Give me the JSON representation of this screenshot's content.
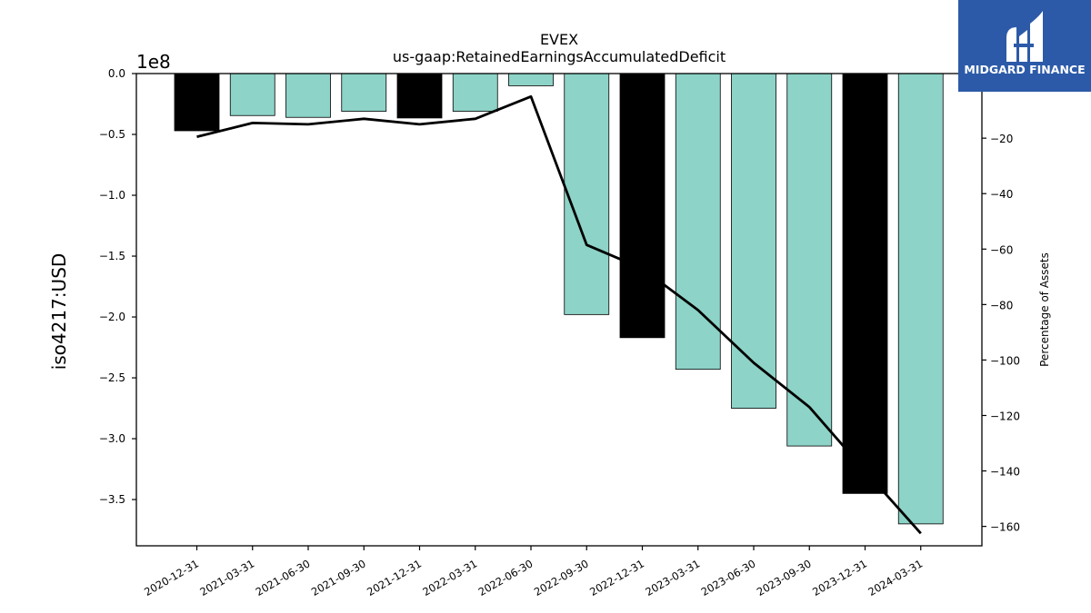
{
  "chart_data": {
    "type": "bar",
    "title": "EVEX",
    "subtitle": "us-gaap:RetainedEarningsAccumulatedDeficit",
    "ylabel": "iso4217:USD",
    "y2label": "Percentage of Assets",
    "y_offset_label": "1e8",
    "categories": [
      "2020-12-31",
      "2021-03-31",
      "2021-06-30",
      "2021-09-30",
      "2021-12-31",
      "2022-03-31",
      "2022-06-30",
      "2022-09-30",
      "2022-12-31",
      "2023-03-31",
      "2023-06-30",
      "2023-09-30",
      "2023-12-31",
      "2024-03-31"
    ],
    "series": [
      {
        "type": "bar",
        "values": [
          -0.47,
          -0.345,
          -0.36,
          -0.31,
          -0.365,
          -0.31,
          -0.1,
          -1.98,
          -2.17,
          -2.43,
          -2.75,
          -3.06,
          -3.45,
          -3.7
        ],
        "colors": [
          "#000000",
          "#8dd3c7",
          "#8dd3c7",
          "#8dd3c7",
          "#000000",
          "#8dd3c7",
          "#8dd3c7",
          "#8dd3c7",
          "#000000",
          "#8dd3c7",
          "#8dd3c7",
          "#8dd3c7",
          "#000000",
          "#8dd3c7"
        ]
      },
      {
        "type": "line",
        "axis": "right",
        "values": [
          -19.5,
          -14.5,
          -15,
          -13,
          -15,
          -13,
          -5,
          -58.5,
          -67,
          -82,
          -101,
          -117,
          -140,
          -162.5
        ],
        "color": "#000000"
      }
    ],
    "ylim": [
      -3.88,
      0
    ],
    "yticks": [
      0.0,
      -0.5,
      -1.0,
      -1.5,
      -2.0,
      -2.5,
      -3.0,
      -3.5
    ],
    "ytick_labels": [
      "0.0",
      "−0.5",
      "−1.0",
      "−1.5",
      "−2.0",
      "−2.5",
      "−3.0",
      "−3.5"
    ],
    "y2lim": [
      -167,
      3.3
    ],
    "y2ticks": [
      -20,
      -40,
      -60,
      -80,
      -100,
      -120,
      -140,
      -160
    ],
    "y2tick_labels": [
      "−20",
      "−40",
      "−60",
      "−80",
      "−100",
      "−120",
      "−140",
      "−160"
    ],
    "grid": false,
    "legend": "none"
  },
  "logo": {
    "text": "MIDGARD FINANCE",
    "background": "#2c5aa8"
  }
}
